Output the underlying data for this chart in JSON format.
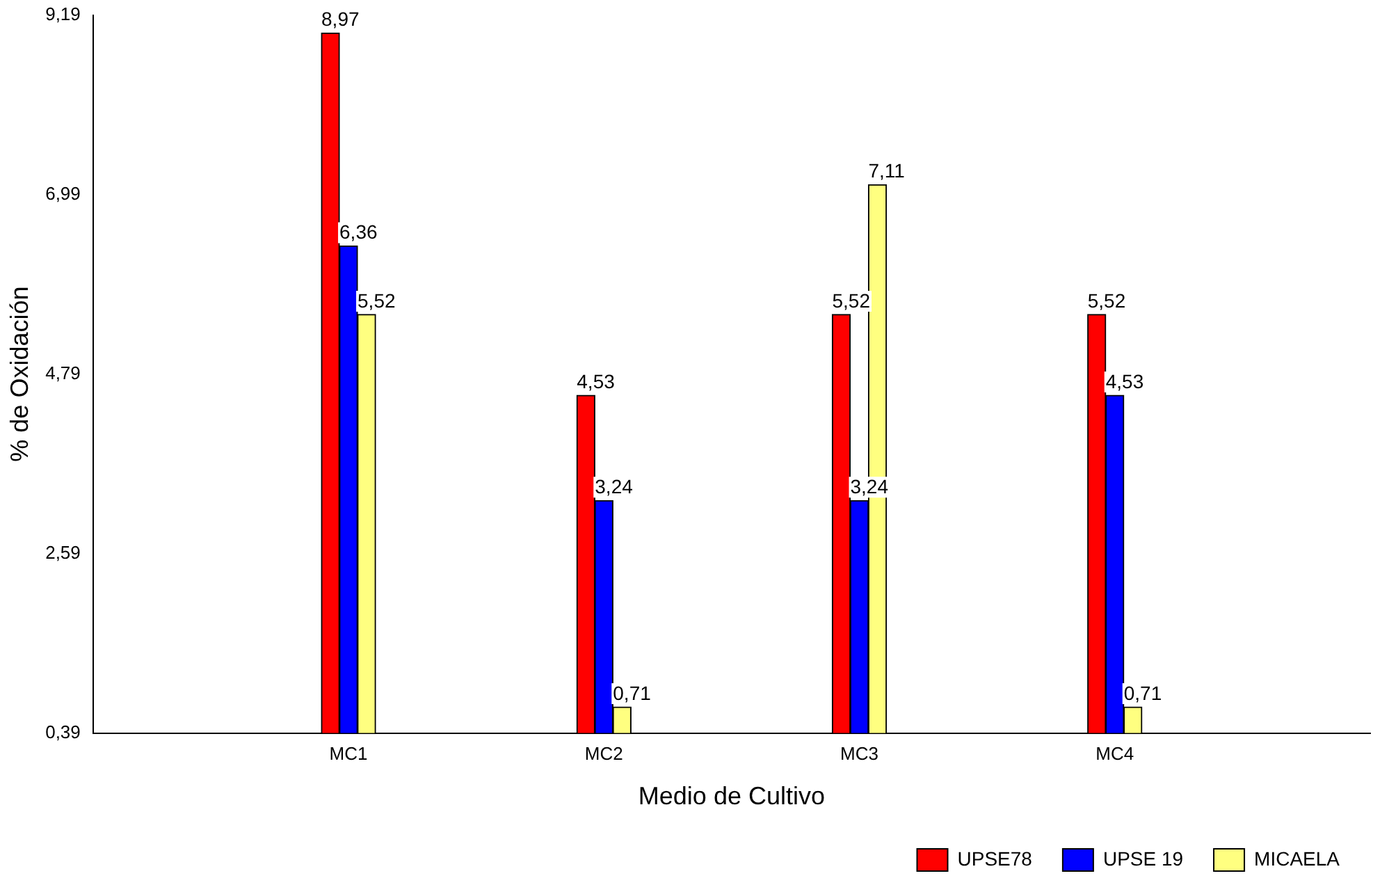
{
  "chart_data": {
    "type": "bar",
    "xlabel": "Medio de Cultivo",
    "ylabel": "% de Oxidación",
    "categories": [
      "MC1",
      "MC2",
      "MC3",
      "MC4"
    ],
    "series": [
      {
        "name": "UPSE78",
        "color": "#ff0000",
        "values": [
          8.97,
          4.53,
          5.52,
          5.52
        ],
        "value_labels": [
          "8,97",
          "4,53",
          "5,52",
          "5,52"
        ]
      },
      {
        "name": "UPSE 19",
        "color": "#0000ff",
        "values": [
          6.36,
          3.24,
          3.24,
          4.53
        ],
        "value_labels": [
          "6,36",
          "3,24",
          "3,24",
          "4,53"
        ]
      },
      {
        "name": "MICAELA",
        "color": "#ffff80",
        "values": [
          5.52,
          0.71,
          7.11,
          0.71
        ],
        "value_labels": [
          "5,52",
          "0,71",
          "7,11",
          "0,71"
        ]
      }
    ],
    "ylim": [
      0.39,
      9.19
    ],
    "yticks": [
      {
        "value": 0.39,
        "label": "0,39"
      },
      {
        "value": 2.59,
        "label": "2,59"
      },
      {
        "value": 4.79,
        "label": "4,79"
      },
      {
        "value": 6.99,
        "label": "6,99"
      },
      {
        "value": 9.19,
        "label": "9,19"
      }
    ],
    "grid": false,
    "legend": "bottom right"
  }
}
